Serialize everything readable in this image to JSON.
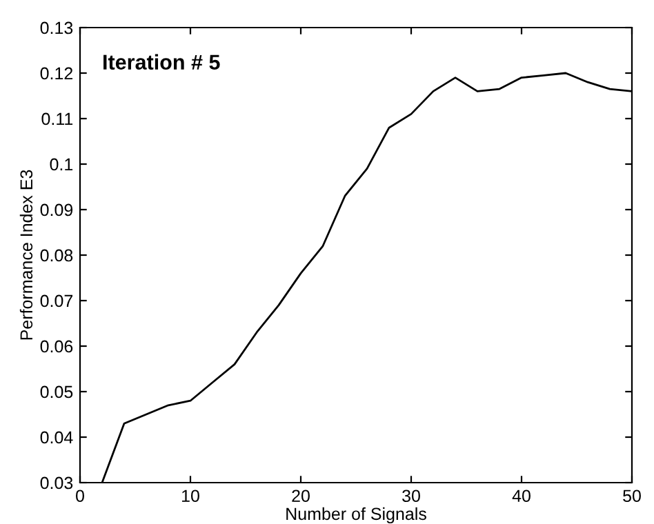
{
  "chart_data": {
    "type": "line",
    "xlabel": "Number of Signals",
    "ylabel": "Performance Index E3",
    "annotations": [
      "Iteration # 5"
    ],
    "x": [
      2,
      4,
      6,
      8,
      10,
      12,
      14,
      16,
      18,
      20,
      22,
      24,
      26,
      28,
      30,
      32,
      34,
      36,
      38,
      40,
      42,
      44,
      46,
      48,
      50
    ],
    "series": [
      {
        "color": "#000000",
        "values": [
          0.03,
          0.043,
          0.045,
          0.047,
          0.048,
          0.052,
          0.056,
          0.063,
          0.069,
          0.076,
          0.082,
          0.093,
          0.099,
          0.108,
          0.111,
          0.116,
          0.119,
          0.116,
          0.1165,
          0.119,
          0.1195,
          0.12,
          0.118,
          0.1165,
          0.116
        ]
      }
    ],
    "xlim": [
      0,
      50
    ],
    "xticks": [
      0,
      10,
      20,
      30,
      40,
      50
    ],
    "ylim": [
      0.03,
      0.13
    ],
    "yticks": [
      0.03,
      0.04,
      0.05,
      0.06,
      0.07,
      0.08,
      0.09,
      0.1,
      0.11,
      0.12,
      0.13
    ],
    "grid": false,
    "legend": false,
    "marker": "none",
    "line_style": "solid"
  }
}
